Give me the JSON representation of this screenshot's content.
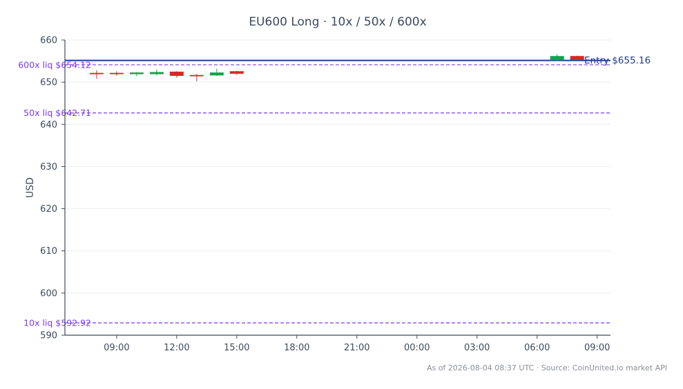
{
  "chart_data": {
    "type": "candlestick",
    "title": "EU600 Long · 10x / 50x / 600x",
    "ylabel": "USD",
    "ylim": [
      590,
      660
    ],
    "yticks": [
      590,
      600,
      610,
      620,
      630,
      640,
      650,
      660
    ],
    "xlim": [
      "2026-08-03 06:25",
      "2026-08-04 09:40"
    ],
    "xticks": [
      {
        "t": "2026-08-03 09:00",
        "label": "09:00"
      },
      {
        "t": "2026-08-03 12:00",
        "label": "12:00"
      },
      {
        "t": "2026-08-03 15:00",
        "label": "15:00"
      },
      {
        "t": "2026-08-03 18:00",
        "label": "18:00"
      },
      {
        "t": "2026-08-03 21:00",
        "label": "21:00"
      },
      {
        "t": "2026-08-04 00:00",
        "label": "00:00"
      },
      {
        "t": "2026-08-04 03:00",
        "label": "03:00"
      },
      {
        "t": "2026-08-04 06:00",
        "label": "06:00"
      },
      {
        "t": "2026-08-04 09:00",
        "label": "09:00"
      }
    ],
    "candles": [
      {
        "t": "2026-08-03 08:00",
        "o": 652.2,
        "h": 652.8,
        "l": 650.8,
        "c": 651.9
      },
      {
        "t": "2026-08-03 09:00",
        "o": 652.2,
        "h": 652.6,
        "l": 651.5,
        "c": 651.9
      },
      {
        "t": "2026-08-03 10:00",
        "o": 651.9,
        "h": 652.4,
        "l": 651.4,
        "c": 652.3
      },
      {
        "t": "2026-08-03 11:00",
        "o": 651.9,
        "h": 653.0,
        "l": 651.6,
        "c": 652.4
      },
      {
        "t": "2026-08-03 12:00",
        "o": 652.5,
        "h": 652.6,
        "l": 651.1,
        "c": 651.5
      },
      {
        "t": "2026-08-03 13:00",
        "o": 651.7,
        "h": 652.0,
        "l": 650.2,
        "c": 651.4
      },
      {
        "t": "2026-08-03 14:00",
        "o": 651.6,
        "h": 653.2,
        "l": 651.5,
        "c": 652.3
      },
      {
        "t": "2026-08-03 15:00",
        "o": 652.6,
        "h": 652.7,
        "l": 651.7,
        "c": 652.0
      },
      {
        "t": "2026-08-04 07:00",
        "o": 655.2,
        "h": 656.6,
        "l": 655.0,
        "c": 656.2
      },
      {
        "t": "2026-08-04 08:00",
        "o": 656.2,
        "h": 656.3,
        "l": 655.2,
        "c": 655.3
      }
    ],
    "entry": {
      "value": 655.16,
      "label": "Entry $655.16",
      "color": "#1e3a8a"
    },
    "liquidation_lines": [
      {
        "value": 654.12,
        "label": "600x liq $654.12"
      },
      {
        "value": 642.71,
        "label": "50x liq $642.71"
      },
      {
        "value": 592.92,
        "label": "10x liq $592.92"
      }
    ],
    "colors": {
      "up": "#16a34a",
      "down": "#dc2626",
      "liq": "#7c3aed",
      "axis": "#3d4a5c",
      "grid": "#eeeeee"
    },
    "grid": true,
    "footer": "As of 2026-08-04 08:37 UTC · Source: CoinUnited.io market API"
  }
}
